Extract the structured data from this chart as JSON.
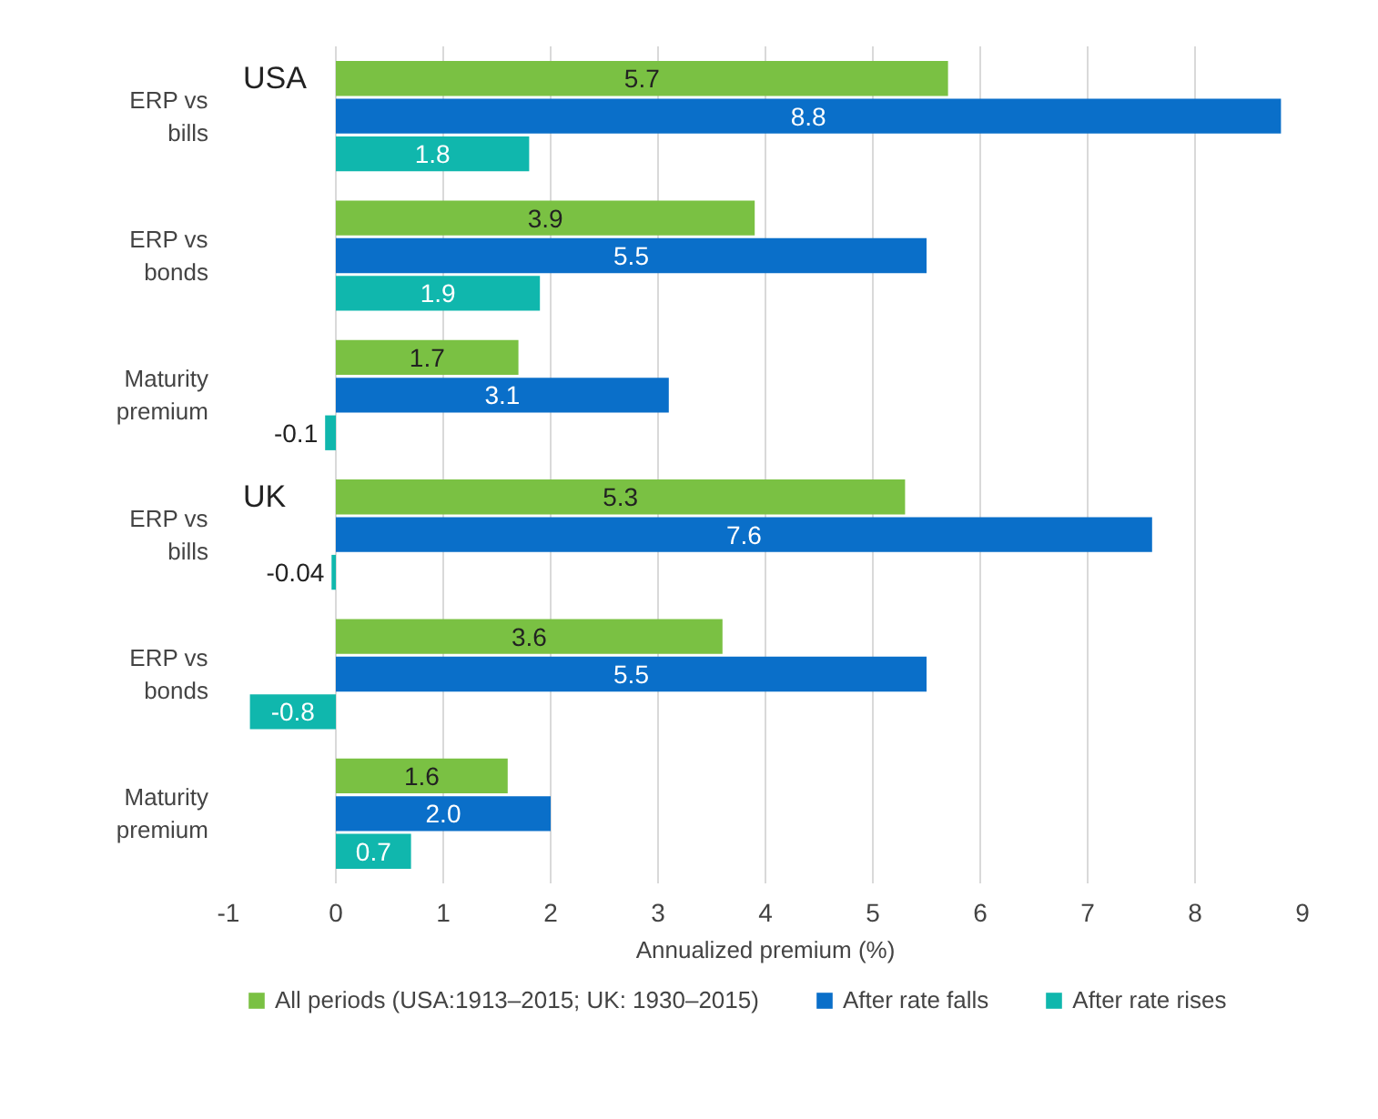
{
  "chart_data": {
    "type": "bar",
    "orientation": "horizontal",
    "xlabel": "Annualized premium (%)",
    "categories": [
      "ERP vs bills",
      "ERP vs bonds",
      "Maturity premium",
      "ERP vs bills",
      "ERP vs bonds",
      "Maturity premium"
    ],
    "series": [
      {
        "name": "All periods (USA:1913–2015; UK: 1930–2015)",
        "color": "#7ac143",
        "values": [
          5.7,
          3.9,
          1.7,
          5.3,
          3.6,
          1.6
        ],
        "value_labels": [
          "5.7",
          "3.9",
          "1.7",
          "5.3",
          "3.6",
          "1.6"
        ]
      },
      {
        "name": "After rate falls",
        "color": "#0a6fc9",
        "values": [
          8.8,
          5.5,
          3.1,
          7.6,
          5.5,
          2.0
        ],
        "value_labels": [
          "8.8",
          "5.5",
          "3.1",
          "7.6",
          "5.5",
          "2.0"
        ]
      },
      {
        "name": "After rate rises",
        "color": "#10b7ad",
        "values": [
          1.8,
          1.9,
          -0.1,
          -0.04,
          -0.8,
          0.7
        ],
        "value_labels": [
          "1.8",
          "1.9",
          "-0.1",
          "-0.04",
          "-0.8",
          "0.7"
        ]
      }
    ],
    "annotations": [
      "USA",
      "UK"
    ],
    "xlim": [
      -1,
      9
    ],
    "xticks": [
      -1,
      0,
      1,
      2,
      3,
      4,
      5,
      6,
      7,
      8,
      9
    ],
    "grid": "x",
    "legend": "bottom"
  }
}
